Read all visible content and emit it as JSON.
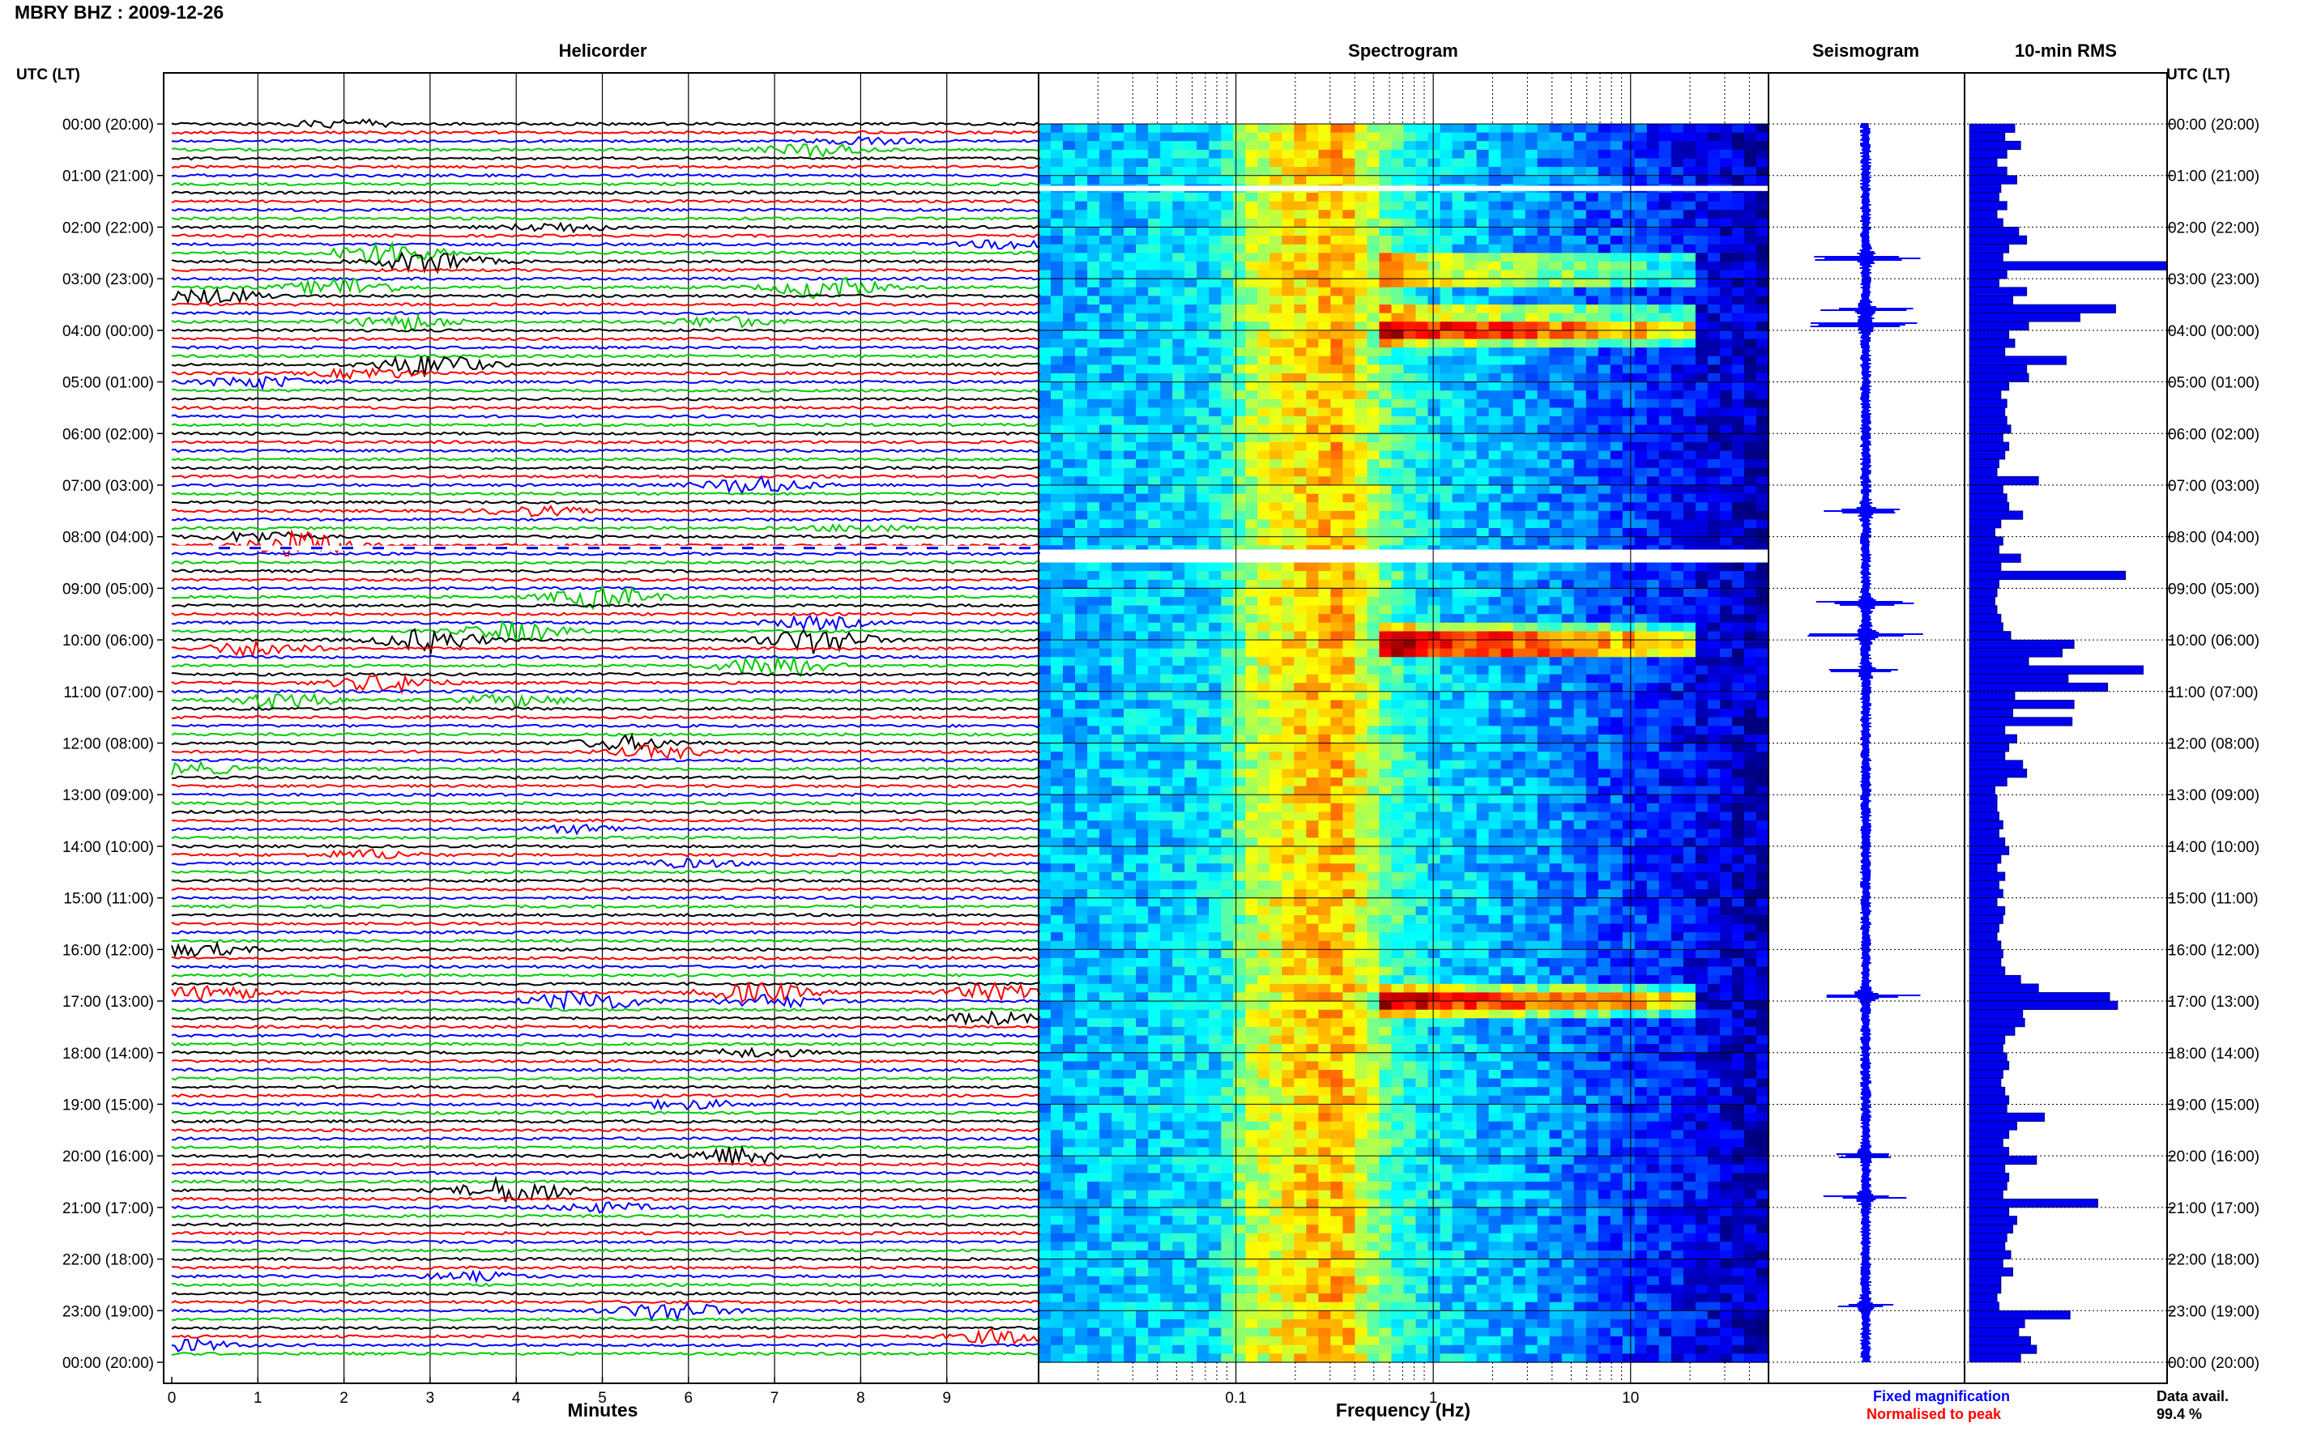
{
  "header": {
    "title": "MBRY BHZ : 2009-12-26"
  },
  "panels": {
    "helicorder": "Helicorder",
    "spectrogram": "Spectrogram",
    "seismogram": "Seismogram",
    "rms": "10-min RMS"
  },
  "axes": {
    "utc_label_left": "UTC (LT)",
    "utc_label_right": "UTC (LT)",
    "minutes_label": "Minutes",
    "frequency_label": "Frequency (Hz)"
  },
  "legend": {
    "fixed": "Fixed magnification",
    "normalised": "Normalised to peak",
    "data_avail_label": "Data avail.",
    "data_avail_value": "99.4 %"
  },
  "colors": {
    "trace_cycle": [
      "#000000",
      "#ff0000",
      "#0000ff",
      "#00cc00"
    ],
    "fixed_magnification": "#0000ff",
    "normalised_to_peak": "#ff0000",
    "rms_bar": "#0000ee",
    "seismogram": "#0000ff"
  },
  "chart_data": [
    {
      "type": "line",
      "name": "helicorder",
      "title": "Helicorder",
      "xlabel": "Minutes",
      "xlim": [
        0,
        10
      ],
      "xticks": [
        "0",
        "1",
        "2",
        "3",
        "4",
        "5",
        "6",
        "7",
        "8",
        "9"
      ],
      "ylabels_left": [
        "00:00 (20:00)",
        "01:00 (21:00)",
        "02:00 (22:00)",
        "03:00 (23:00)",
        "04:00 (00:00)",
        "05:00 (01:00)",
        "06:00 (02:00)",
        "07:00 (03:00)",
        "08:00 (04:00)",
        "09:00 (05:00)",
        "10:00 (06:00)",
        "11:00 (07:00)",
        "12:00 (08:00)",
        "13:00 (09:00)",
        "14:00 (10:00)",
        "15:00 (11:00)",
        "16:00 (12:00)",
        "17:00 (13:00)",
        "18:00 (14:00)",
        "19:00 (15:00)",
        "20:00 (16:00)",
        "21:00 (17:00)",
        "22:00 (18:00)",
        "23:00 (19:00)",
        "00:00 (20:00)"
      ],
      "lines_per_hour": 6,
      "total_lines": 144,
      "grid": true,
      "events": [
        {
          "line": 0,
          "minute": 2.0,
          "amplitude": 0.6
        },
        {
          "line": 2,
          "minute": 8.0,
          "amplitude": 0.4
        },
        {
          "line": 3,
          "minute": 7.5,
          "amplitude": 0.9
        },
        {
          "line": 12,
          "minute": 4.5,
          "amplitude": 0.6
        },
        {
          "line": 14,
          "minute": 9.8,
          "amplitude": 0.6
        },
        {
          "line": 15,
          "minute": 2.5,
          "amplitude": 1.6
        },
        {
          "line": 16,
          "minute": 3.0,
          "amplitude": 1.5
        },
        {
          "line": 19,
          "minute": 2.0,
          "amplitude": 1.3
        },
        {
          "line": 19,
          "minute": 7.6,
          "amplitude": 1.5
        },
        {
          "line": 20,
          "minute": 0.5,
          "amplitude": 1.0
        },
        {
          "line": 23,
          "minute": 2.7,
          "amplitude": 1.0
        },
        {
          "line": 23,
          "minute": 6.4,
          "amplitude": 0.7
        },
        {
          "line": 28,
          "minute": 3.0,
          "amplitude": 1.6
        },
        {
          "line": 29,
          "minute": 2.3,
          "amplitude": 0.7
        },
        {
          "line": 30,
          "minute": 1.0,
          "amplitude": 0.8
        },
        {
          "line": 42,
          "minute": 6.8,
          "amplitude": 1.2
        },
        {
          "line": 45,
          "minute": 4.2,
          "amplitude": 0.6
        },
        {
          "line": 47,
          "minute": 8.0,
          "amplitude": 0.5
        },
        {
          "line": 48,
          "minute": 1.0,
          "amplitude": 0.7
        },
        {
          "line": 49,
          "minute": 1.5,
          "amplitude": 1.8
        },
        {
          "line": 55,
          "minute": 5.0,
          "amplitude": 1.5
        },
        {
          "line": 58,
          "minute": 7.5,
          "amplitude": 0.8
        },
        {
          "line": 59,
          "minute": 4.0,
          "amplitude": 1.3
        },
        {
          "line": 60,
          "minute": 3.0,
          "amplitude": 1.5
        },
        {
          "line": 60,
          "minute": 7.5,
          "amplitude": 1.8
        },
        {
          "line": 61,
          "minute": 1.0,
          "amplitude": 1.0
        },
        {
          "line": 63,
          "minute": 7.0,
          "amplitude": 1.6
        },
        {
          "line": 65,
          "minute": 2.5,
          "amplitude": 1.2
        },
        {
          "line": 67,
          "minute": 1.3,
          "amplitude": 1.1
        },
        {
          "line": 67,
          "minute": 4.0,
          "amplitude": 0.8
        },
        {
          "line": 72,
          "minute": 5.3,
          "amplitude": 0.9
        },
        {
          "line": 73,
          "minute": 5.7,
          "amplitude": 0.8
        },
        {
          "line": 75,
          "minute": 0.2,
          "amplitude": 0.8
        },
        {
          "line": 82,
          "minute": 4.8,
          "amplitude": 0.5
        },
        {
          "line": 85,
          "minute": 2.3,
          "amplitude": 0.6
        },
        {
          "line": 86,
          "minute": 6.0,
          "amplitude": 0.5
        },
        {
          "line": 96,
          "minute": 0.3,
          "amplitude": 0.8
        },
        {
          "line": 101,
          "minute": 0.5,
          "amplitude": 1.0
        },
        {
          "line": 101,
          "minute": 6.8,
          "amplitude": 1.3
        },
        {
          "line": 101,
          "minute": 9.6,
          "amplitude": 1.1
        },
        {
          "line": 102,
          "minute": 4.8,
          "amplitude": 1.5
        },
        {
          "line": 102,
          "minute": 7.0,
          "amplitude": 0.8
        },
        {
          "line": 104,
          "minute": 9.5,
          "amplitude": 0.8
        },
        {
          "line": 108,
          "minute": 6.8,
          "amplitude": 0.6
        },
        {
          "line": 114,
          "minute": 6.0,
          "amplitude": 0.6
        },
        {
          "line": 120,
          "minute": 6.6,
          "amplitude": 1.3
        },
        {
          "line": 124,
          "minute": 4.0,
          "amplitude": 1.8
        },
        {
          "line": 126,
          "minute": 5.0,
          "amplitude": 0.6
        },
        {
          "line": 134,
          "minute": 3.5,
          "amplitude": 0.5
        },
        {
          "line": 138,
          "minute": 5.8,
          "amplitude": 1.3
        },
        {
          "line": 141,
          "minute": 9.7,
          "amplitude": 1.0
        },
        {
          "line": 142,
          "minute": 0.1,
          "amplitude": 0.8
        }
      ]
    },
    {
      "type": "heatmap",
      "name": "spectrogram",
      "title": "Spectrogram",
      "xlabel": "Frequency (Hz)",
      "xscale": "log",
      "xlim": [
        0.01,
        50
      ],
      "xticks": [
        "0.1",
        "1",
        "10"
      ],
      "ylim_hours": [
        0,
        24
      ],
      "data_gaps_hours": [
        [
          1.2,
          1.3
        ],
        [
          8.25,
          8.5
        ]
      ],
      "colormap": "jet",
      "intensity_by_frequency": [
        {
          "freq": 0.01,
          "level": 0.3
        },
        {
          "freq": 0.08,
          "level": 0.35
        },
        {
          "freq": 0.12,
          "level": 0.55
        },
        {
          "freq": 0.2,
          "level": 0.65
        },
        {
          "freq": 0.35,
          "level": 0.7
        },
        {
          "freq": 0.6,
          "level": 0.45
        },
        {
          "freq": 1,
          "level": 0.35
        },
        {
          "freq": 5,
          "level": 0.25
        },
        {
          "freq": 15,
          "level": 0.15
        },
        {
          "freq": 50,
          "level": 0.05
        }
      ],
      "high_activity_hours": [
        2.8,
        3.8,
        4.0,
        9.9,
        10.0,
        16.8,
        17.0
      ]
    },
    {
      "type": "line",
      "name": "seismogram",
      "title": "Seismogram",
      "ylim_hours": [
        0,
        24
      ],
      "spikes": [
        {
          "hour": 2.6,
          "amplitude": 1.0
        },
        {
          "hour": 3.6,
          "amplitude": 0.9
        },
        {
          "hour": 3.9,
          "amplitude": 1.0
        },
        {
          "hour": 7.5,
          "amplitude": 0.8
        },
        {
          "hour": 9.3,
          "amplitude": 0.9
        },
        {
          "hour": 9.9,
          "amplitude": 1.1
        },
        {
          "hour": 10.6,
          "amplitude": 0.7
        },
        {
          "hour": 16.9,
          "amplitude": 1.1
        },
        {
          "hour": 20.0,
          "amplitude": 0.6
        },
        {
          "hour": 20.8,
          "amplitude": 0.8
        },
        {
          "hour": 22.9,
          "amplitude": 0.5
        }
      ]
    },
    {
      "type": "bar",
      "name": "rms",
      "title": "10-min RMS",
      "orientation": "horizontal",
      "bin_minutes": 10,
      "xlim": [
        0,
        1
      ],
      "values": [
        0.23,
        0.18,
        0.26,
        0.19,
        0.14,
        0.19,
        0.24,
        0.16,
        0.15,
        0.19,
        0.14,
        0.17,
        0.25,
        0.29,
        0.2,
        0.17,
        1.0,
        0.19,
        0.15,
        0.29,
        0.22,
        0.74,
        0.56,
        0.3,
        0.2,
        0.23,
        0.18,
        0.49,
        0.29,
        0.3,
        0.2,
        0.16,
        0.19,
        0.18,
        0.19,
        0.21,
        0.17,
        0.2,
        0.18,
        0.15,
        0.14,
        0.35,
        0.17,
        0.19,
        0.2,
        0.27,
        0.16,
        0.13,
        0.17,
        0.15,
        0.26,
        0.16,
        0.79,
        0.15,
        0.14,
        0.13,
        0.14,
        0.16,
        0.17,
        0.21,
        0.53,
        0.47,
        0.3,
        0.88,
        0.5,
        0.7,
        0.23,
        0.53,
        0.22,
        0.52,
        0.18,
        0.24,
        0.2,
        0.18,
        0.27,
        0.29,
        0.19,
        0.13,
        0.14,
        0.14,
        0.15,
        0.17,
        0.15,
        0.18,
        0.2,
        0.16,
        0.14,
        0.18,
        0.15,
        0.17,
        0.14,
        0.18,
        0.17,
        0.15,
        0.14,
        0.16,
        0.17,
        0.16,
        0.18,
        0.26,
        0.35,
        0.71,
        0.75,
        0.27,
        0.28,
        0.23,
        0.18,
        0.17,
        0.19,
        0.2,
        0.17,
        0.16,
        0.18,
        0.2,
        0.19,
        0.38,
        0.24,
        0.2,
        0.17,
        0.2,
        0.34,
        0.18,
        0.2,
        0.19,
        0.17,
        0.65,
        0.2,
        0.24,
        0.22,
        0.19,
        0.18,
        0.21,
        0.17,
        0.22,
        0.16,
        0.16,
        0.14,
        0.15,
        0.51,
        0.28,
        0.25,
        0.31,
        0.34,
        0.26
      ]
    }
  ]
}
